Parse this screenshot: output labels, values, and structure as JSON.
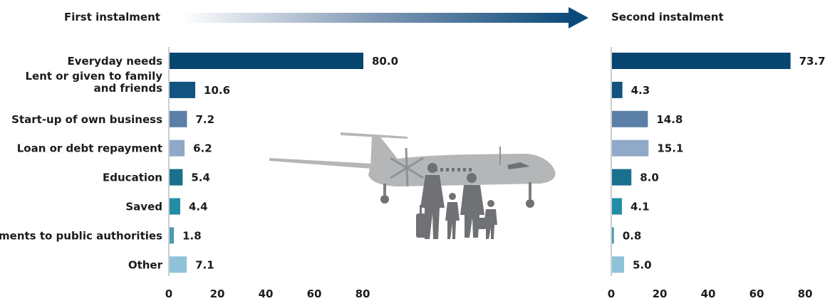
{
  "headers": {
    "left": "First instalment",
    "right": "Second instalment"
  },
  "colors": {
    "arrow": "#0a4a7a",
    "axis": "#999999",
    "silhouette_plane": "#b4b6b8",
    "silhouette_people": "#6f7174",
    "bars": [
      "#05456f",
      "#12537f",
      "#5b7fa6",
      "#91a9c8",
      "#19708f",
      "#228da6",
      "#4c9ab5",
      "#8ec2d8"
    ]
  },
  "illustration": {
    "plane_icon": "airplane-icon",
    "people_icon": "family-travellers-icon"
  },
  "chart_data": [
    {
      "type": "bar",
      "orientation": "horizontal",
      "title": "First instalment",
      "categories": [
        "Everyday needs",
        "Lent or given to family and friends",
        "Start-up of own business",
        "Loan or debt repayment",
        "Education",
        "Saved",
        "Payments to public authorities",
        "Other"
      ],
      "category_lines": [
        [
          "Everyday needs"
        ],
        [
          "Lent or given to family",
          "and friends"
        ],
        [
          "Start-up of own business"
        ],
        [
          "Loan or debt repayment"
        ],
        [
          "Education"
        ],
        [
          "Saved"
        ],
        [
          "Payments to public authorities"
        ],
        [
          "Other"
        ]
      ],
      "values": [
        80.0,
        10.6,
        7.2,
        6.2,
        5.4,
        4.4,
        1.8,
        7.1
      ],
      "value_labels": [
        "80.0",
        "10.6",
        "7.2",
        "6.2",
        "5.4",
        "4.4",
        "1.8",
        "7.1"
      ],
      "xlim": [
        0,
        80
      ],
      "xticks": [
        "0",
        "20",
        "40",
        "60",
        "80"
      ],
      "xtick_values": [
        0,
        20,
        40,
        60,
        80
      ],
      "grid": false
    },
    {
      "type": "bar",
      "orientation": "horizontal",
      "title": "Second instalment",
      "categories": [
        "Everyday needs",
        "Lent or given to family and friends",
        "Start-up of own business",
        "Loan or debt repayment",
        "Education",
        "Saved",
        "Payments to public authorities",
        "Other"
      ],
      "values": [
        73.7,
        4.3,
        14.8,
        15.1,
        8.0,
        4.1,
        0.8,
        5.0
      ],
      "value_labels": [
        "73.7",
        "4.3",
        "14.8",
        "15.1",
        "8.0",
        "4.1",
        "0.8",
        "5.0"
      ],
      "xlim": [
        0,
        80
      ],
      "xticks": [
        "0",
        "20",
        "40",
        "60",
        "80"
      ],
      "xtick_values": [
        0,
        20,
        40,
        60,
        80
      ],
      "grid": false
    }
  ]
}
